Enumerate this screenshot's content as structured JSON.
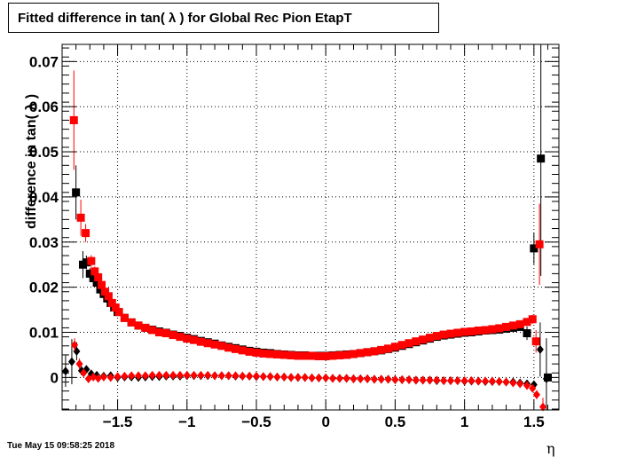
{
  "title": "Fitted difference in tan( λ ) for Global Rec Pion EtapT",
  "timestamp": "Tue May 15 09:58:25 2018",
  "chart_data": {
    "type": "scatter",
    "title": "Fitted difference in tan( λ ) for Global Rec Pion EtapT",
    "xlabel": "η",
    "ylabel": "difference in tan( λ )",
    "xlim": [
      -1.9,
      1.68
    ],
    "ylim": [
      -0.0072,
      0.0738
    ],
    "grid": true,
    "x_ticks": [
      -1.5,
      -1,
      -0.5,
      0,
      0.5,
      1,
      1.5
    ],
    "x_tick_labels": [
      "−1.5",
      "−1",
      "−0.5",
      "0",
      "0.5",
      "1",
      "1.5"
    ],
    "y_ticks": [
      0,
      0.01,
      0.02,
      0.03,
      0.04,
      0.05,
      0.06,
      0.07
    ],
    "y_tick_labels": [
      "0",
      "0.01",
      "0.02",
      "0.03",
      "0.04",
      "0.05",
      "0.06",
      "0.07"
    ],
    "series": [
      {
        "marker": "square",
        "color": "#000000",
        "x": [
          -1.8,
          -1.75,
          -1.725,
          -1.7,
          -1.675,
          -1.65,
          -1.625,
          -1.6,
          -1.575,
          -1.55,
          -1.525,
          -1.5,
          -1.45,
          -1.4,
          -1.35,
          -1.3,
          -1.25,
          -1.2,
          -1.15,
          -1.1,
          -1.05,
          -1.0,
          -0.95,
          -0.9,
          -0.85,
          -0.8,
          -0.75,
          -0.7,
          -0.65,
          -0.6,
          -0.55,
          -0.5,
          -0.45,
          -0.4,
          -0.35,
          -0.3,
          -0.25,
          -0.2,
          -0.15,
          -0.1,
          -0.05,
          0.0,
          0.05,
          0.1,
          0.15,
          0.2,
          0.25,
          0.3,
          0.35,
          0.4,
          0.45,
          0.5,
          0.55,
          0.6,
          0.65,
          0.7,
          0.75,
          0.8,
          0.85,
          0.9,
          0.95,
          1.0,
          1.05,
          1.1,
          1.15,
          1.2,
          1.25,
          1.3,
          1.35,
          1.4,
          1.45,
          1.5,
          1.55,
          1.6
        ],
        "y": [
          0.041,
          0.025,
          0.0255,
          0.023,
          0.022,
          0.021,
          0.0195,
          0.0185,
          0.0175,
          0.0165,
          0.0155,
          0.0145,
          0.0132,
          0.0122,
          0.0115,
          0.011,
          0.0106,
          0.0102,
          0.0099,
          0.0095,
          0.0092,
          0.0088,
          0.0085,
          0.0081,
          0.0078,
          0.0075,
          0.0071,
          0.0068,
          0.0065,
          0.0062,
          0.0059,
          0.0057,
          0.0055,
          0.0054,
          0.0052,
          0.0051,
          0.005,
          0.0049,
          0.0049,
          0.0048,
          0.0048,
          0.0048,
          0.0049,
          0.005,
          0.0051,
          0.0052,
          0.0054,
          0.0056,
          0.0058,
          0.006,
          0.0063,
          0.0066,
          0.007,
          0.0074,
          0.0078,
          0.0082,
          0.0086,
          0.009,
          0.0093,
          0.0095,
          0.0097,
          0.0099,
          0.01,
          0.0102,
          0.0104,
          0.0105,
          0.0106,
          0.0108,
          0.011,
          0.0112,
          0.0098,
          0.0286,
          0.0485,
          0.0
        ],
        "err": [
          0.006,
          0.003,
          0.0015,
          0.0012,
          0.001,
          0.0008,
          0.0007,
          0.0006,
          0.0005,
          0.0005,
          0.0004,
          0.0004,
          0.0003,
          0.0003,
          0.0003,
          0.0003,
          0.0003,
          0.0003,
          0.0002,
          0.0002,
          0.0002,
          0.0002,
          0.0002,
          0.0002,
          0.0002,
          0.0002,
          0.0002,
          0.0002,
          0.0002,
          0.0002,
          0.0002,
          0.0002,
          0.0002,
          0.0002,
          0.0002,
          0.0002,
          0.0002,
          0.0002,
          0.0002,
          0.0002,
          0.0002,
          0.0002,
          0.0002,
          0.0002,
          0.0002,
          0.0002,
          0.0002,
          0.0002,
          0.0002,
          0.0002,
          0.0002,
          0.0002,
          0.0002,
          0.0002,
          0.0002,
          0.0002,
          0.0002,
          0.0002,
          0.0002,
          0.0002,
          0.0002,
          0.0002,
          0.0002,
          0.0003,
          0.0003,
          0.0003,
          0.0003,
          0.0004,
          0.0005,
          0.0008,
          0.0015,
          0.0035,
          0.026,
          0.0
        ]
      },
      {
        "marker": "square",
        "color": "#ff0000",
        "x": [
          -1.815,
          -1.765,
          -1.73,
          -1.69,
          -1.665,
          -1.64,
          -1.615,
          -1.59,
          -1.565,
          -1.54,
          -1.515,
          -1.49,
          -1.45,
          -1.4,
          -1.35,
          -1.3,
          -1.25,
          -1.2,
          -1.15,
          -1.1,
          -1.05,
          -1.0,
          -0.95,
          -0.9,
          -0.85,
          -0.8,
          -0.75,
          -0.7,
          -0.65,
          -0.6,
          -0.55,
          -0.5,
          -0.45,
          -0.4,
          -0.35,
          -0.3,
          -0.25,
          -0.2,
          -0.15,
          -0.1,
          -0.05,
          0.0,
          0.05,
          0.1,
          0.15,
          0.2,
          0.25,
          0.3,
          0.35,
          0.4,
          0.45,
          0.5,
          0.55,
          0.6,
          0.65,
          0.7,
          0.75,
          0.8,
          0.85,
          0.9,
          0.95,
          1.0,
          1.05,
          1.1,
          1.15,
          1.2,
          1.25,
          1.3,
          1.35,
          1.4,
          1.45,
          1.49,
          1.515,
          1.54
        ],
        "y": [
          0.057,
          0.0354,
          0.032,
          0.0258,
          0.0235,
          0.0222,
          0.0205,
          0.019,
          0.018,
          0.0165,
          0.0155,
          0.0145,
          0.0132,
          0.0122,
          0.0115,
          0.011,
          0.0105,
          0.01,
          0.0098,
          0.0094,
          0.009,
          0.0086,
          0.0083,
          0.0079,
          0.0076,
          0.0073,
          0.007,
          0.0066,
          0.0063,
          0.006,
          0.0057,
          0.0055,
          0.0053,
          0.0052,
          0.0051,
          0.005,
          0.0049,
          0.0048,
          0.0048,
          0.0048,
          0.0047,
          0.0047,
          0.0048,
          0.0049,
          0.005,
          0.0052,
          0.0054,
          0.0056,
          0.0058,
          0.0061,
          0.0064,
          0.0068,
          0.0072,
          0.0076,
          0.008,
          0.0084,
          0.0088,
          0.0092,
          0.0095,
          0.0097,
          0.0099,
          0.0101,
          0.0102,
          0.0104,
          0.0105,
          0.0107,
          0.0109,
          0.0112,
          0.0115,
          0.0118,
          0.0123,
          0.0129,
          0.008,
          0.0295
        ],
        "err": [
          0.011,
          0.004,
          0.002,
          0.0013,
          0.0011,
          0.0009,
          0.0008,
          0.0007,
          0.0006,
          0.0005,
          0.0005,
          0.0004,
          0.0003,
          0.0003,
          0.0003,
          0.0003,
          0.0003,
          0.0003,
          0.0002,
          0.0002,
          0.0002,
          0.0002,
          0.0002,
          0.0002,
          0.0002,
          0.0002,
          0.0002,
          0.0002,
          0.0002,
          0.0002,
          0.0002,
          0.0002,
          0.0002,
          0.0002,
          0.0002,
          0.0002,
          0.0002,
          0.0002,
          0.0002,
          0.0002,
          0.0002,
          0.0002,
          0.0002,
          0.0002,
          0.0002,
          0.0002,
          0.0002,
          0.0002,
          0.0002,
          0.0002,
          0.0002,
          0.0002,
          0.0002,
          0.0002,
          0.0002,
          0.0002,
          0.0002,
          0.0002,
          0.0002,
          0.0002,
          0.0002,
          0.0002,
          0.0002,
          0.0003,
          0.0003,
          0.0003,
          0.0003,
          0.0003,
          0.0004,
          0.0005,
          0.0007,
          0.001,
          0.0025,
          0.009
        ]
      },
      {
        "marker": "diamond",
        "color": "#000000",
        "x": [
          -1.875,
          -1.83,
          -1.795,
          -1.76,
          -1.725,
          -1.69,
          -1.65,
          -1.6,
          -1.55,
          -1.5,
          -1.45,
          -1.4,
          -1.35,
          -1.3,
          -1.25,
          -1.2,
          -1.15,
          -1.1,
          -1.05,
          -1.0,
          -0.95,
          -0.9,
          -0.85,
          -0.8,
          -0.75,
          -0.7,
          -0.65,
          -0.6,
          -0.55,
          -0.5,
          -0.45,
          -0.4,
          -0.35,
          -0.3,
          -0.25,
          -0.2,
          -0.15,
          -0.1,
          -0.05,
          0.0,
          0.05,
          0.1,
          0.15,
          0.2,
          0.25,
          0.3,
          0.35,
          0.4,
          0.45,
          0.5,
          0.55,
          0.6,
          0.65,
          0.7,
          0.75,
          0.8,
          0.85,
          0.9,
          0.95,
          1.0,
          1.05,
          1.1,
          1.15,
          1.2,
          1.25,
          1.3,
          1.35,
          1.4,
          1.45,
          1.5,
          1.545,
          1.59
        ],
        "y": [
          0.0014,
          0.0035,
          0.0058,
          0.0015,
          0.0018,
          0.0008,
          0.0005,
          0.0003,
          0.0004,
          0.0,
          0.0001,
          0.0001,
          0.0,
          0.0001,
          0.0002,
          0.0002,
          0.0003,
          0.0003,
          0.0003,
          0.0004,
          0.0004,
          0.0004,
          0.0004,
          0.0004,
          0.0004,
          0.0004,
          0.0003,
          0.0003,
          0.0003,
          0.0002,
          0.0002,
          0.0002,
          0.0001,
          0.0001,
          0.0,
          0.0,
          0.0,
          -0.0001,
          -0.0001,
          -0.0001,
          -0.0002,
          -0.0002,
          -0.0002,
          -0.0003,
          -0.0003,
          -0.0003,
          -0.0004,
          -0.0004,
          -0.0004,
          -0.0005,
          -0.0005,
          -0.0005,
          -0.0006,
          -0.0006,
          -0.0006,
          -0.0007,
          -0.0007,
          -0.0007,
          -0.0007,
          -0.0008,
          -0.0008,
          -0.0008,
          -0.0009,
          -0.0009,
          -0.0009,
          -0.001,
          -0.001,
          -0.0012,
          -0.0014,
          -0.0016,
          0.0062,
          -0.0003
        ],
        "err": [
          0.0035,
          0.005,
          0.002,
          0.001,
          0.0008,
          0.0006,
          0.0005,
          0.0004,
          0.0003,
          0.0003,
          0.0002,
          0.0002,
          0.0002,
          0.0002,
          0.0002,
          0.0002,
          0.0002,
          0.0002,
          0.0002,
          0.0002,
          0.0002,
          0.0002,
          0.0002,
          0.0002,
          0.0002,
          0.0002,
          0.0002,
          0.0002,
          0.0002,
          0.0002,
          0.0002,
          0.0002,
          0.0002,
          0.0002,
          0.0002,
          0.0002,
          0.0002,
          0.0002,
          0.0002,
          0.0002,
          0.0002,
          0.0002,
          0.0002,
          0.0002,
          0.0002,
          0.0002,
          0.0002,
          0.0002,
          0.0002,
          0.0002,
          0.0002,
          0.0002,
          0.0002,
          0.0002,
          0.0002,
          0.0002,
          0.0002,
          0.0002,
          0.0002,
          0.0002,
          0.0002,
          0.0002,
          0.0002,
          0.0002,
          0.0002,
          0.0003,
          0.0003,
          0.0004,
          0.0005,
          0.0008,
          0.006,
          0.009
        ]
      },
      {
        "marker": "diamond",
        "color": "#ff0000",
        "x": [
          -1.81,
          -1.775,
          -1.745,
          -1.71,
          -1.675,
          -1.64,
          -1.6,
          -1.55,
          -1.5,
          -1.45,
          -1.4,
          -1.35,
          -1.3,
          -1.25,
          -1.2,
          -1.15,
          -1.1,
          -1.05,
          -1.0,
          -0.95,
          -0.9,
          -0.85,
          -0.8,
          -0.75,
          -0.7,
          -0.65,
          -0.6,
          -0.55,
          -0.5,
          -0.45,
          -0.4,
          -0.35,
          -0.3,
          -0.25,
          -0.2,
          -0.15,
          -0.1,
          -0.05,
          0.0,
          0.05,
          0.1,
          0.15,
          0.2,
          0.25,
          0.3,
          0.35,
          0.4,
          0.45,
          0.5,
          0.55,
          0.6,
          0.65,
          0.7,
          0.75,
          0.8,
          0.85,
          0.9,
          0.95,
          1.0,
          1.05,
          1.1,
          1.15,
          1.2,
          1.25,
          1.3,
          1.35,
          1.4,
          1.45,
          1.49,
          1.52,
          1.565
        ],
        "y": [
          0.0072,
          0.003,
          0.001,
          -0.0003,
          0.0001,
          -0.0002,
          0.0001,
          0.0,
          0.0002,
          0.0003,
          0.0004,
          0.0004,
          0.0004,
          0.0005,
          0.0005,
          0.0005,
          0.0005,
          0.0005,
          0.0005,
          0.0005,
          0.0005,
          0.0005,
          0.0004,
          0.0004,
          0.0004,
          0.0004,
          0.0003,
          0.0003,
          0.0003,
          0.0002,
          0.0002,
          0.0001,
          0.0001,
          0.0,
          0.0,
          0.0,
          -0.0001,
          -0.0001,
          -0.0001,
          -0.0002,
          -0.0002,
          -0.0002,
          -0.0003,
          -0.0003,
          -0.0003,
          -0.0004,
          -0.0004,
          -0.0004,
          -0.0005,
          -0.0005,
          -0.0005,
          -0.0006,
          -0.0006,
          -0.0006,
          -0.0006,
          -0.0007,
          -0.0007,
          -0.0007,
          -0.0007,
          -0.0007,
          -0.0008,
          -0.0008,
          -0.0008,
          -0.0009,
          -0.001,
          -0.0012,
          -0.0014,
          -0.0018,
          -0.0024,
          -0.0038,
          -0.0065
        ],
        "err": [
          0.0015,
          0.0012,
          0.0008,
          0.0006,
          0.0005,
          0.0004,
          0.0003,
          0.0003,
          0.0002,
          0.0002,
          0.0002,
          0.0002,
          0.0002,
          0.0002,
          0.0002,
          0.0002,
          0.0002,
          0.0002,
          0.0002,
          0.0002,
          0.0002,
          0.0002,
          0.0002,
          0.0002,
          0.0002,
          0.0002,
          0.0002,
          0.0002,
          0.0002,
          0.0002,
          0.0002,
          0.0002,
          0.0002,
          0.0002,
          0.0002,
          0.0002,
          0.0002,
          0.0002,
          0.0002,
          0.0002,
          0.0002,
          0.0002,
          0.0002,
          0.0002,
          0.0002,
          0.0002,
          0.0002,
          0.0002,
          0.0002,
          0.0002,
          0.0002,
          0.0002,
          0.0002,
          0.0002,
          0.0002,
          0.0002,
          0.0002,
          0.0002,
          0.0002,
          0.0002,
          0.0002,
          0.0002,
          0.0002,
          0.0002,
          0.0003,
          0.0003,
          0.0003,
          0.0004,
          0.0006,
          0.001,
          0.002
        ]
      }
    ]
  }
}
